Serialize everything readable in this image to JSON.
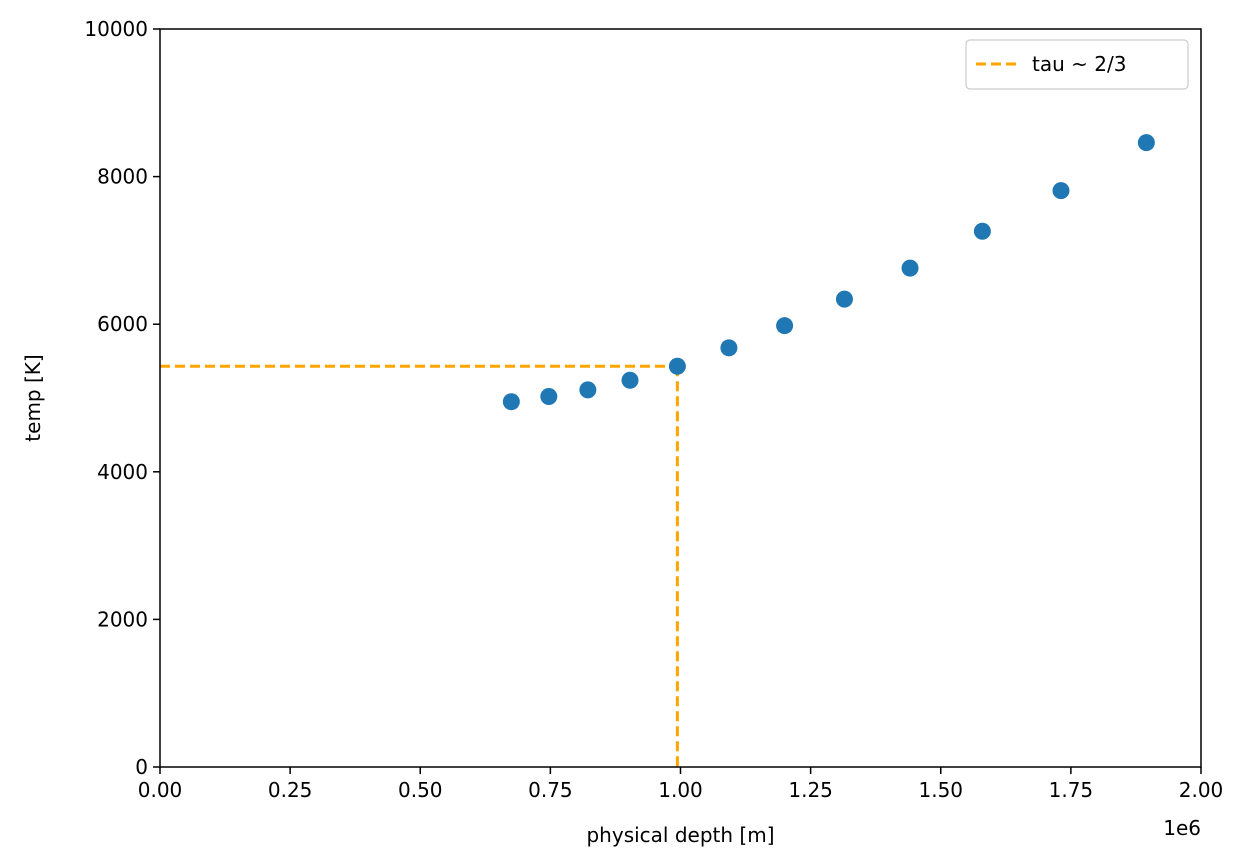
{
  "chart_data": {
    "type": "scatter",
    "title": "",
    "xlabel": "physical depth [m]",
    "ylabel": "temp [K]",
    "x_offset_label": "1e6",
    "xlim": [
      0,
      2000000
    ],
    "ylim": [
      0,
      10000
    ],
    "x_ticks": [
      0,
      250000,
      500000,
      750000,
      1000000,
      1250000,
      1500000,
      1750000,
      2000000
    ],
    "x_tick_labels": [
      "0.00",
      "0.25",
      "0.50",
      "0.75",
      "1.00",
      "1.25",
      "1.50",
      "1.75",
      "2.00"
    ],
    "y_ticks": [
      0,
      2000,
      4000,
      6000,
      8000,
      10000
    ],
    "y_tick_labels": [
      "0",
      "2000",
      "4000",
      "6000",
      "8000",
      "10000"
    ],
    "grid": false,
    "series": [
      {
        "color": "#1f77b4",
        "x": [
          675000,
          747000,
          822000,
          903000,
          994000,
          1093000,
          1200000,
          1315000,
          1441000,
          1580000,
          1731000,
          1895000
        ],
        "y": [
          4950,
          5020,
          5110,
          5240,
          5430,
          5680,
          5980,
          6340,
          6760,
          7260,
          7810,
          8460
        ]
      }
    ],
    "reference_lines": {
      "legend_label": "tau ~ 2/3",
      "color": "#ffa500",
      "style": "dashed",
      "x": 994000,
      "y": 5430
    },
    "legend_position": "top-right"
  }
}
